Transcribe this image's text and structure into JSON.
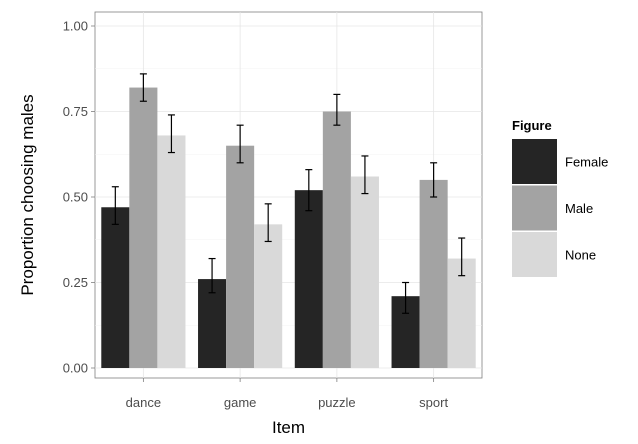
{
  "chart_data": {
    "type": "bar",
    "xlabel": "Item",
    "ylabel": "Proportion choosing males",
    "categories": [
      "dance",
      "game",
      "puzzle",
      "sport"
    ],
    "ylim": [
      0,
      1
    ],
    "yticks": [
      0,
      0.25,
      0.5,
      0.75,
      1.0
    ],
    "ytick_labels": [
      "0.00",
      "0.25",
      "0.50",
      "0.75",
      "1.00"
    ],
    "grid": true,
    "legend_position": "right",
    "legend_title": "Figure",
    "series": [
      {
        "name": "Female",
        "color": "#252525",
        "values": [
          0.47,
          0.26,
          0.52,
          0.21
        ],
        "err_low": [
          0.42,
          0.22,
          0.46,
          0.16
        ],
        "err_high": [
          0.53,
          0.32,
          0.58,
          0.25
        ]
      },
      {
        "name": "Male",
        "color": "#a3a3a3",
        "values": [
          0.82,
          0.65,
          0.75,
          0.55
        ],
        "err_low": [
          0.78,
          0.6,
          0.71,
          0.5
        ],
        "err_high": [
          0.86,
          0.71,
          0.8,
          0.6
        ]
      },
      {
        "name": "None",
        "color": "#d9d9d9",
        "values": [
          0.68,
          0.42,
          0.56,
          0.32
        ],
        "err_low": [
          0.63,
          0.37,
          0.51,
          0.27
        ],
        "err_high": [
          0.74,
          0.48,
          0.62,
          0.38
        ]
      }
    ]
  }
}
